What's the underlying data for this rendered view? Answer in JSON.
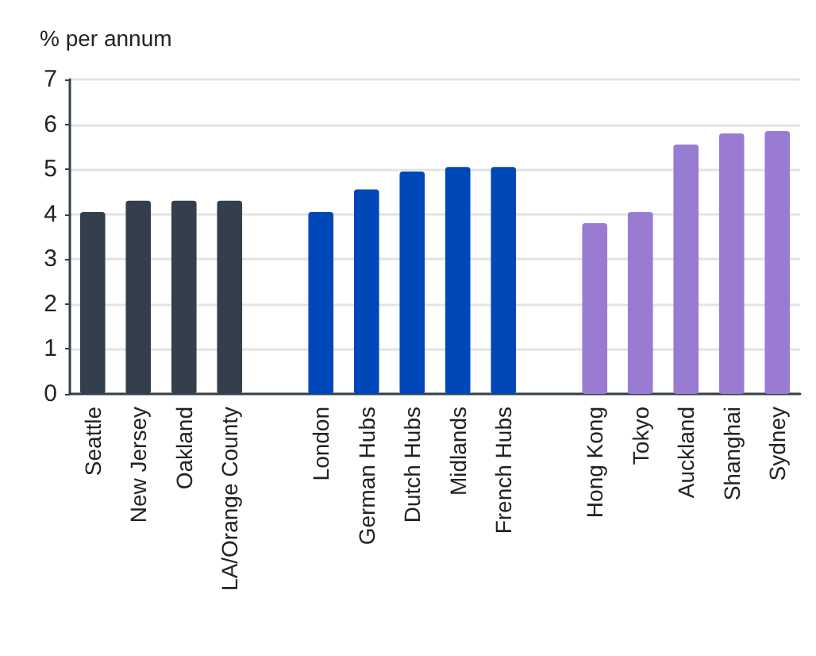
{
  "chart_data": {
    "type": "bar",
    "ylabel": "% per annum",
    "categories": [
      "Seattle",
      "New Jersey",
      "Oakland",
      "LA/Orange County",
      null,
      "London",
      "German Hubs",
      "Dutch Hubs",
      "Midlands",
      "French Hubs",
      null,
      "Hong Kong",
      "Tokyo",
      "Auckland",
      "Shanghai",
      "Sydney"
    ],
    "values": [
      4.05,
      4.3,
      4.3,
      4.3,
      null,
      4.05,
      4.55,
      4.95,
      5.05,
      5.05,
      null,
      3.8,
      4.05,
      5.55,
      5.8,
      5.85
    ],
    "colors": [
      "#333f4a",
      "#333f4a",
      "#333f4a",
      "#333f4a",
      null,
      "#0047ba",
      "#0047ba",
      "#0047ba",
      "#0047ba",
      "#0047ba",
      null,
      "#9a7bd2",
      "#9a7bd2",
      "#9a7bd2",
      "#9a7bd2",
      "#9a7bd2"
    ],
    "ylim": [
      0,
      7
    ],
    "yticks": [
      0,
      1,
      2,
      3,
      4,
      5,
      6,
      7
    ],
    "grid": "y"
  }
}
